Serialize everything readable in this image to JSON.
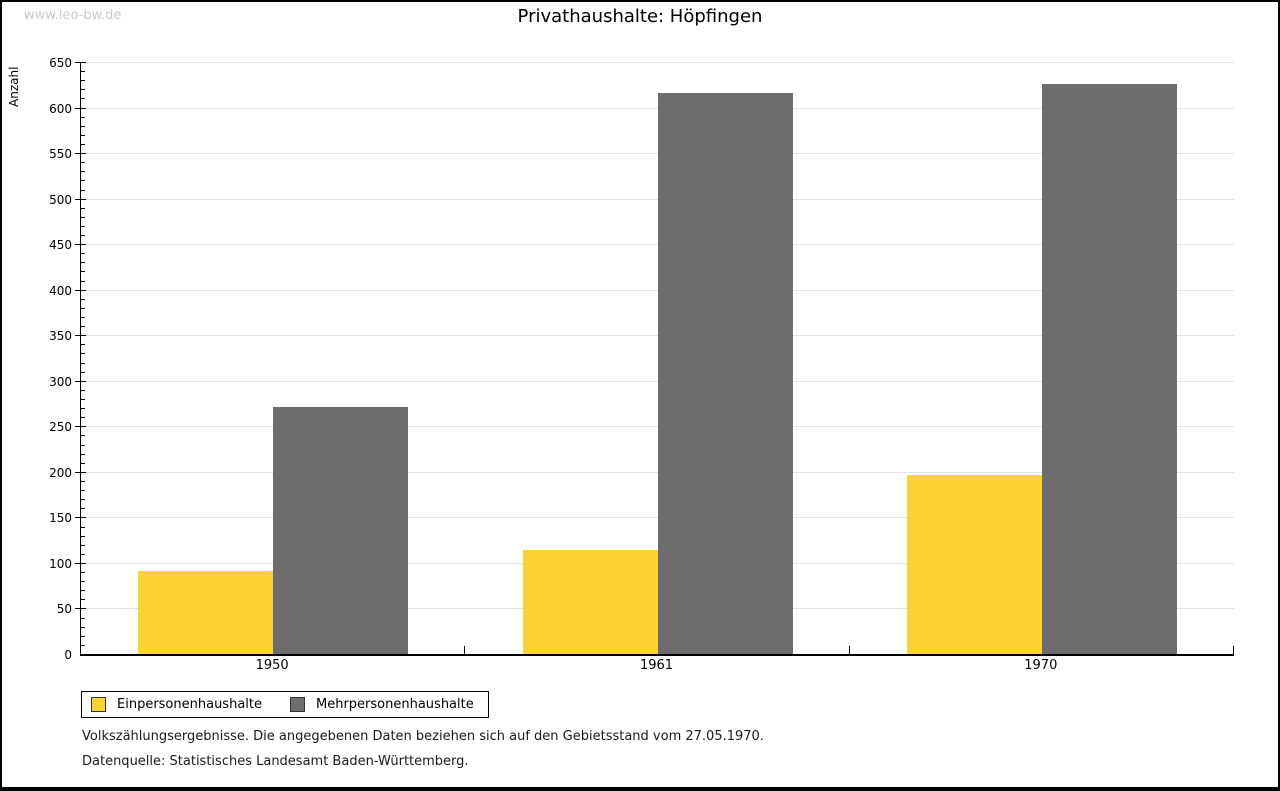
{
  "watermark": "www.leo-bw.de",
  "chart_data": {
    "type": "bar",
    "title": "Privathaushalte: Höpfingen",
    "ylabel": "Anzahl",
    "xlabel": "",
    "categories": [
      "1950",
      "1961",
      "1970"
    ],
    "series": [
      {
        "name": "Einpersonenhaushalte",
        "color": "#FCD330",
        "values": [
          91,
          114,
          197
        ]
      },
      {
        "name": "Mehrpersonenhaushalte",
        "color": "#6D6D6D",
        "values": [
          271,
          616,
          626
        ]
      }
    ],
    "ylim": [
      0,
      650
    ],
    "ytick_step": 50,
    "yminor_step": 10,
    "grid": true,
    "gridline_color": "#e2e2e2",
    "legend_position": "bottom-left"
  },
  "notes": [
    "Volkszählungsergebnisse. Die angegebenen Daten beziehen sich auf den Gebietsstand vom 27.05.1970.",
    "Datenquelle: Statistisches Landesamt Baden-Württemberg."
  ]
}
